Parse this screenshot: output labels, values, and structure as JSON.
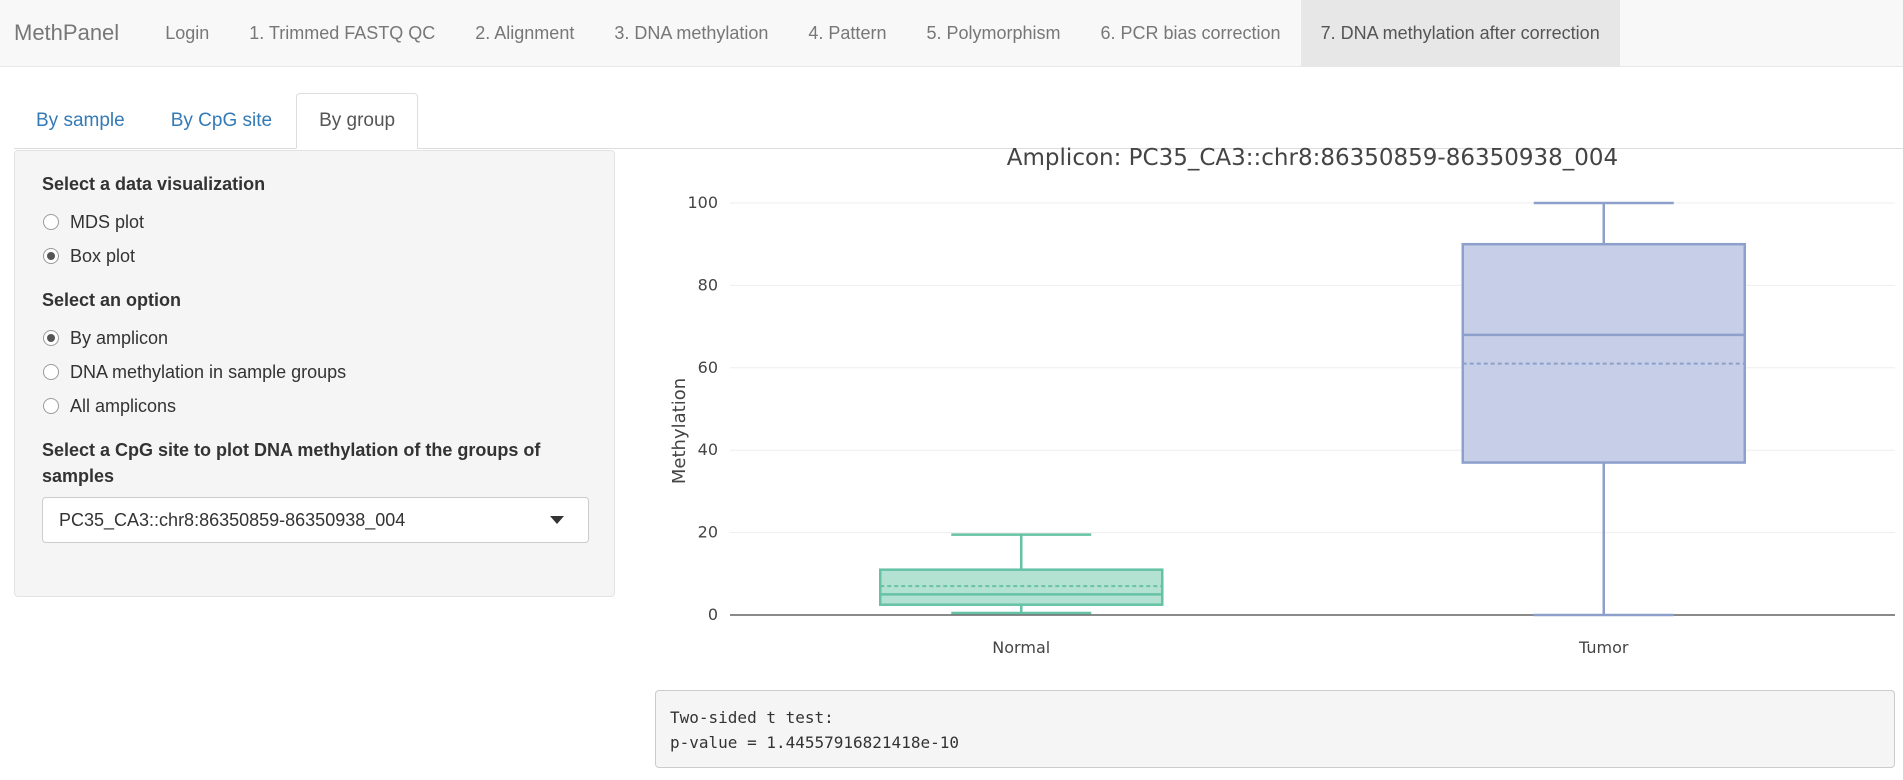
{
  "navbar": {
    "brand": "MethPanel",
    "items": [
      {
        "label": "Login"
      },
      {
        "label": "1. Trimmed FASTQ QC"
      },
      {
        "label": "2. Alignment"
      },
      {
        "label": "3. DNA methylation"
      },
      {
        "label": "4. Pattern"
      },
      {
        "label": "5. Polymorphism"
      },
      {
        "label": "6. PCR bias correction"
      },
      {
        "label": "7. DNA methylation after correction",
        "active": true
      }
    ]
  },
  "tabs": [
    {
      "label": "By sample"
    },
    {
      "label": "By CpG site"
    },
    {
      "label": "By group",
      "active": true
    }
  ],
  "sidebar": {
    "viz_label": "Select a data visualization",
    "viz_options": [
      {
        "label": "MDS plot",
        "checked": false
      },
      {
        "label": "Box plot",
        "checked": true
      }
    ],
    "option_label": "Select an option",
    "options": [
      {
        "label": "By amplicon",
        "checked": true
      },
      {
        "label": "DNA methylation in sample groups",
        "checked": false
      },
      {
        "label": "All amplicons",
        "checked": false
      }
    ],
    "cpg_label": "Select a CpG site to plot DNA methylation of the groups of samples",
    "cpg_value": "PC35_CA3::chr8:86350859-86350938_004"
  },
  "chart_data": {
    "type": "box",
    "title": "Amplicon: PC35_CA3::chr8:86350859-86350938_004",
    "ylabel": "Methylation",
    "xlabel": "",
    "ylim": [
      0,
      100
    ],
    "yticks": [
      0,
      20,
      40,
      60,
      80,
      100
    ],
    "grid": true,
    "categories": [
      "Normal",
      "Tumor"
    ],
    "boxes": [
      {
        "name": "Normal",
        "color": "#66c2a5",
        "fill": "#b3e2d2",
        "min": 0.5,
        "q1": 2.5,
        "median": 5,
        "mean": 7,
        "q3": 11,
        "max": 19.5
      },
      {
        "name": "Tumor",
        "color": "#8da0cb",
        "fill": "#c6cfe7",
        "min": 0,
        "q1": 37,
        "median": 68,
        "mean": 61,
        "q3": 90,
        "max": 100
      }
    ]
  },
  "test_result": {
    "line1": "Two-sided t test:",
    "line2": "p-value = 1.44557916821418e-10"
  }
}
